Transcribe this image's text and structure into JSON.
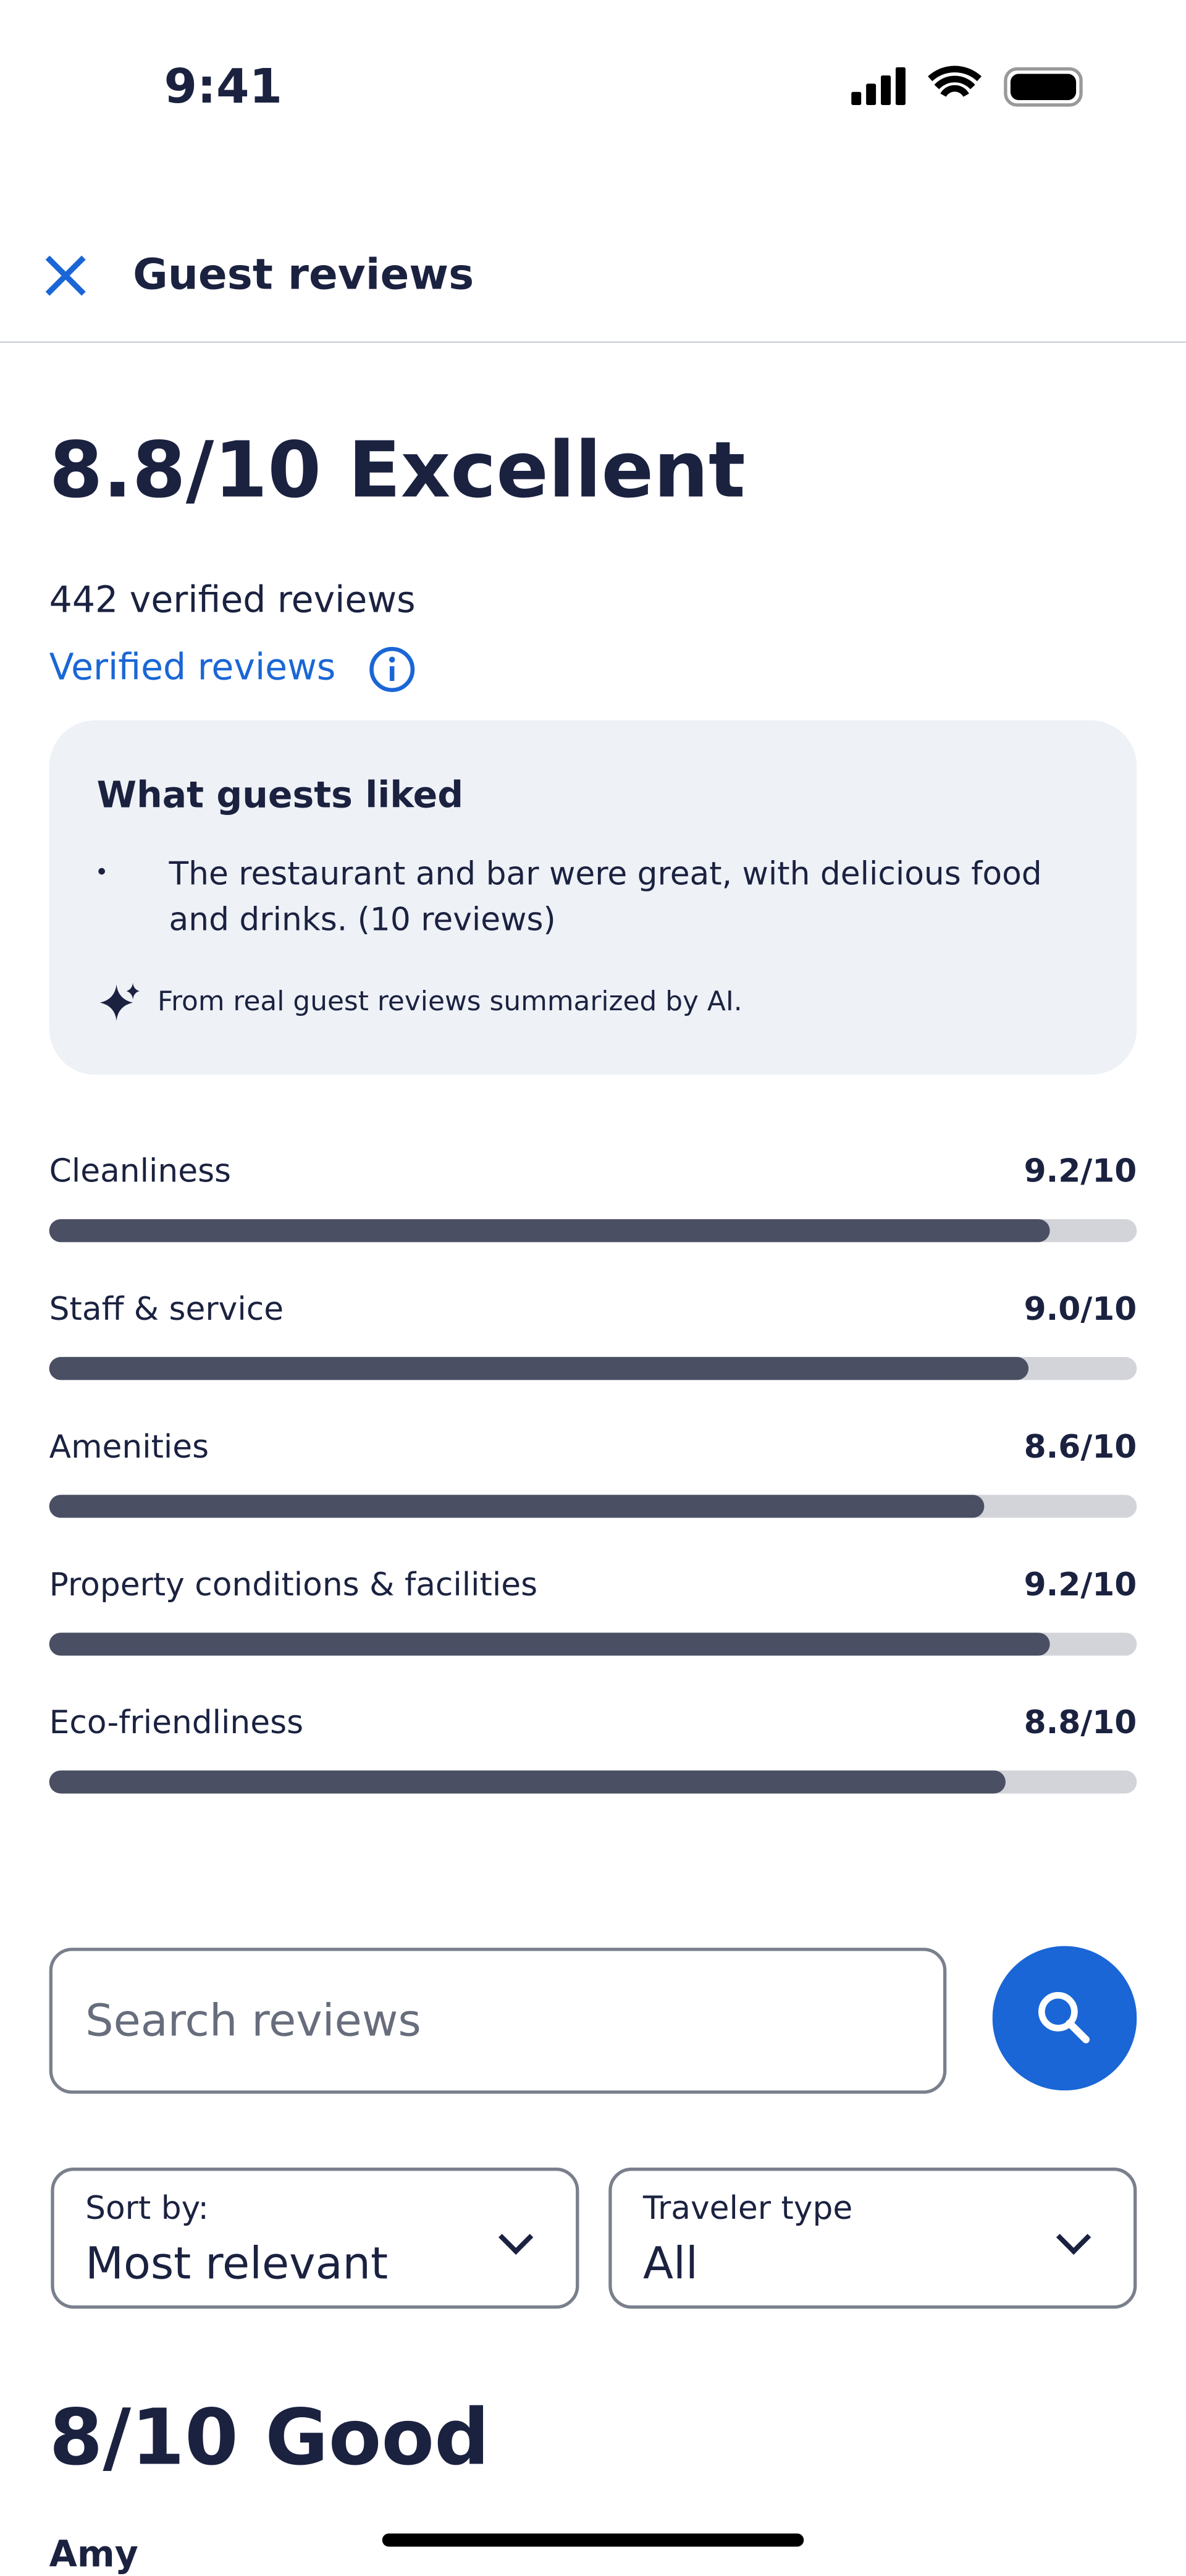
{
  "status_bar": {
    "time": "9:41"
  },
  "header": {
    "title": "Guest reviews"
  },
  "rating": {
    "headline": "8.8/10 Excellent",
    "count": "442 verified reviews",
    "verified_link": "Verified reviews"
  },
  "liked": {
    "title": "What guests liked",
    "items": [
      "The restaurant and bar were great, with delicious food and drinks. (10 reviews)"
    ],
    "ai_note": "From real guest reviews summarized by AI."
  },
  "scores": {
    "categories": [
      "Cleanliness",
      "Staff & service",
      "Amenities",
      "Property conditions & facilities",
      "Eco-friendliness"
    ],
    "values": [
      9.2,
      9.0,
      8.6,
      9.2,
      8.8
    ],
    "value_labels": [
      "9.2/10",
      "9.0/10",
      "8.6/10",
      "9.2/10",
      "8.8/10"
    ],
    "xlim": [
      0,
      10
    ]
  },
  "search": {
    "placeholder": "Search reviews"
  },
  "filters": [
    {
      "label": "Sort by:",
      "value": "Most relevant"
    },
    {
      "label": "Traveler type",
      "value": "All"
    }
  ],
  "review": {
    "headline": "8/10 Good",
    "author": "Amy"
  }
}
